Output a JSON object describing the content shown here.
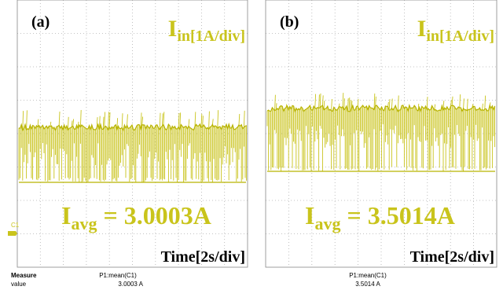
{
  "panels": [
    {
      "label": "(a)",
      "channel": {
        "symbol": "I",
        "subscript": "in[1A/div]"
      },
      "average": {
        "symbol": "I",
        "subscript": "avg",
        "text": "= 3.0003A"
      },
      "time_scale": "Time[2s/div]",
      "measure": {
        "parameter": "P1:mean(C1)",
        "value": "3.0003 A"
      }
    },
    {
      "label": "(b)",
      "channel": {
        "symbol": "I",
        "subscript": "in[1A/div]"
      },
      "average": {
        "symbol": "I",
        "subscript": "avg",
        "text": "= 3.5014A"
      },
      "time_scale": "Time[2s/div]",
      "measure": {
        "parameter": "P1:mean(C1)",
        "value": "3.5014 A"
      }
    }
  ],
  "measure_labels": {
    "title": "Measure",
    "row": "value"
  },
  "marker": "C1"
}
